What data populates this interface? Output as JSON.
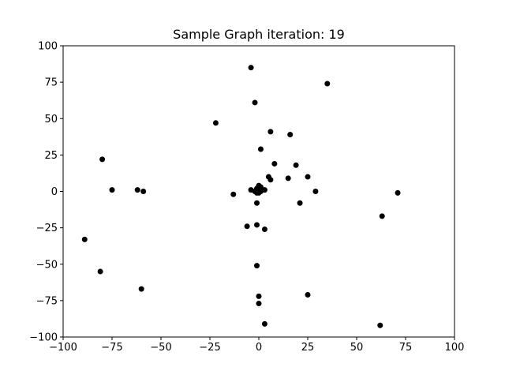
{
  "chart_data": {
    "type": "scatter",
    "title": "Sample Graph iteration: 19",
    "xlabel": "",
    "ylabel": "",
    "xlim": [
      -100,
      100
    ],
    "ylim": [
      -100,
      100
    ],
    "xticks": [
      -100,
      -75,
      -50,
      -25,
      0,
      25,
      50,
      75,
      100
    ],
    "yticks": [
      -100,
      -75,
      -50,
      -25,
      0,
      25,
      50,
      75,
      100
    ],
    "xtick_labels": [
      "−100",
      "−75",
      "−50",
      "−25",
      "0",
      "25",
      "50",
      "75",
      "100"
    ],
    "ytick_labels": [
      "−100",
      "−75",
      "−50",
      "−25",
      "0",
      "25",
      "50",
      "75",
      "100"
    ],
    "grid": false,
    "marker_color": "#000000",
    "points": [
      {
        "x": -4,
        "y": 85
      },
      {
        "x": 35,
        "y": 74
      },
      {
        "x": -2,
        "y": 61
      },
      {
        "x": -22,
        "y": 47
      },
      {
        "x": 6,
        "y": 41
      },
      {
        "x": 16,
        "y": 39
      },
      {
        "x": 1,
        "y": 29
      },
      {
        "x": -80,
        "y": 22
      },
      {
        "x": 8,
        "y": 19
      },
      {
        "x": 19,
        "y": 18
      },
      {
        "x": 5,
        "y": 10
      },
      {
        "x": 15,
        "y": 9
      },
      {
        "x": 25,
        "y": 10
      },
      {
        "x": 6,
        "y": 8
      },
      {
        "x": -75,
        "y": 1
      },
      {
        "x": -62,
        "y": 1
      },
      {
        "x": -59,
        "y": 0
      },
      {
        "x": -13,
        "y": -2
      },
      {
        "x": -4,
        "y": 1
      },
      {
        "x": -2,
        "y": 0
      },
      {
        "x": 0,
        "y": 4
      },
      {
        "x": 1,
        "y": 3
      },
      {
        "x": -1,
        "y": 2
      },
      {
        "x": 0,
        "y": 1
      },
      {
        "x": 1,
        "y": 0
      },
      {
        "x": -1,
        "y": -1
      },
      {
        "x": 0,
        "y": -1
      },
      {
        "x": 3,
        "y": 1
      },
      {
        "x": 29,
        "y": 0
      },
      {
        "x": 71,
        "y": -1
      },
      {
        "x": -1,
        "y": -8
      },
      {
        "x": 21,
        "y": -8
      },
      {
        "x": 63,
        "y": -17
      },
      {
        "x": -6,
        "y": -24
      },
      {
        "x": -1,
        "y": -23
      },
      {
        "x": 3,
        "y": -26
      },
      {
        "x": -89,
        "y": -33
      },
      {
        "x": -81,
        "y": -55
      },
      {
        "x": -1,
        "y": -51
      },
      {
        "x": -60,
        "y": -67
      },
      {
        "x": 25,
        "y": -71
      },
      {
        "x": 0,
        "y": -72
      },
      {
        "x": 0,
        "y": -77
      },
      {
        "x": 3,
        "y": -91
      },
      {
        "x": 62,
        "y": -92
      }
    ]
  }
}
